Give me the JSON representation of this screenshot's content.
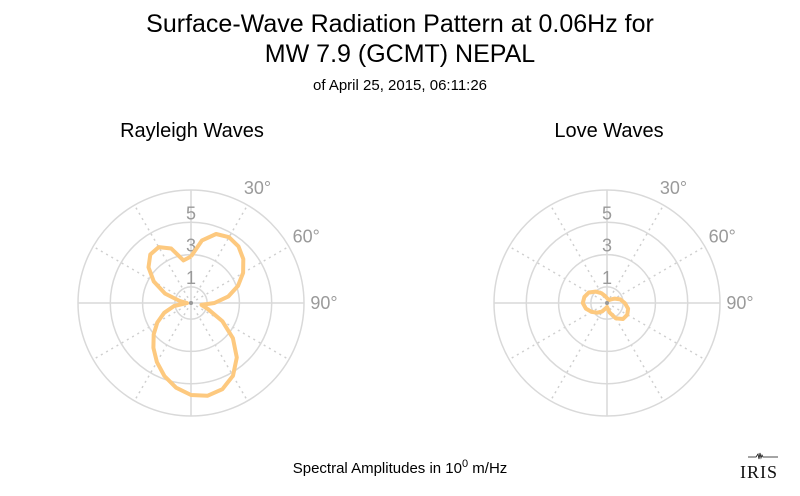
{
  "title": {
    "line1": "Surface-Wave Radiation Pattern at 0.06Hz for",
    "line2": "MW 7.9 (GCMT) NEPAL",
    "line3": "of April 25, 2015, 06:11:26"
  },
  "footer": {
    "prefix": "Spectral Amplitudes in 10",
    "exponent": "0",
    "suffix": " m/Hz"
  },
  "logo_text": "IRIS",
  "colors": {
    "pattern": "#fdc97f",
    "grid_solid": "#d9d9d9",
    "grid_dotted": "#cfcfcf",
    "tick_text": "#9a9a9a"
  },
  "chart_data": [
    {
      "type": "polar-line",
      "title": "Rayleigh Waves",
      "radial_ticks": [
        "1",
        "3",
        "5"
      ],
      "radial_tick_values": [
        1,
        3,
        5
      ],
      "rmax": 7,
      "angle_ticks": [
        "30°",
        "60°",
        "90°"
      ],
      "grid_angles_deg": [
        0,
        30,
        60,
        90,
        120,
        150,
        180,
        210,
        240,
        270,
        300,
        330
      ],
      "points": [
        {
          "azimuth": 0,
          "amplitude": 2.88
        },
        {
          "azimuth": 10,
          "amplitude": 3.94
        },
        {
          "azimuth": 20,
          "amplitude": 4.55
        },
        {
          "azimuth": 30,
          "amplitude": 4.71
        },
        {
          "azimuth": 40,
          "amplitude": 4.58
        },
        {
          "azimuth": 50,
          "amplitude": 4.23
        },
        {
          "azimuth": 60,
          "amplitude": 3.73
        },
        {
          "azimuth": 70,
          "amplitude": 3.1
        },
        {
          "azimuth": 80,
          "amplitude": 2.35
        },
        {
          "azimuth": 90,
          "amplitude": 1.45
        },
        {
          "azimuth": 100,
          "amplitude": 0.66
        },
        {
          "azimuth": 110,
          "amplitude": 1.13
        },
        {
          "azimuth": 120,
          "amplitude": 2.24
        },
        {
          "azimuth": 130,
          "amplitude": 3.39
        },
        {
          "azimuth": 140,
          "amplitude": 4.41
        },
        {
          "azimuth": 150,
          "amplitude": 5.2
        },
        {
          "azimuth": 160,
          "amplitude": 5.68
        },
        {
          "azimuth": 170,
          "amplitude": 5.84
        },
        {
          "azimuth": 180,
          "amplitude": 5.7
        },
        {
          "azimuth": 190,
          "amplitude": 5.33
        },
        {
          "azimuth": 200,
          "amplitude": 4.81
        },
        {
          "azimuth": 210,
          "amplitude": 4.23
        },
        {
          "azimuth": 220,
          "amplitude": 3.62
        },
        {
          "azimuth": 230,
          "amplitude": 3.02
        },
        {
          "azimuth": 240,
          "amplitude": 2.41
        },
        {
          "azimuth": 250,
          "amplitude": 1.77
        },
        {
          "azimuth": 260,
          "amplitude": 1.06
        },
        {
          "azimuth": 270,
          "amplitude": 0.25
        },
        {
          "azimuth": 280,
          "amplitude": 0.69
        },
        {
          "azimuth": 290,
          "amplitude": 1.71
        },
        {
          "azimuth": 300,
          "amplitude": 2.66
        },
        {
          "azimuth": 310,
          "amplitude": 3.44
        },
        {
          "azimuth": 320,
          "amplitude": 3.92
        },
        {
          "azimuth": 330,
          "amplitude": 4.0
        },
        {
          "azimuth": 340,
          "amplitude": 3.59
        },
        {
          "azimuth": 350,
          "amplitude": 2.68
        },
        {
          "azimuth": 360,
          "amplitude": 2.88
        }
      ]
    },
    {
      "type": "polar-line",
      "title": "Love Waves",
      "radial_ticks": [
        "1",
        "3",
        "5"
      ],
      "radial_tick_values": [
        1,
        3,
        5
      ],
      "rmax": 7,
      "angle_ticks": [
        "30°",
        "60°",
        "90°"
      ],
      "grid_angles_deg": [
        0,
        30,
        60,
        90,
        120,
        150,
        180,
        210,
        240,
        270,
        300,
        330
      ],
      "points": [
        {
          "azimuth": 0,
          "amplitude": 0.3
        },
        {
          "azimuth": 15,
          "amplitude": 0.25
        },
        {
          "azimuth": 30,
          "amplitude": 0.2
        },
        {
          "azimuth": 45,
          "amplitude": 0.3
        },
        {
          "azimuth": 60,
          "amplitude": 0.55
        },
        {
          "azimuth": 75,
          "amplitude": 0.85
        },
        {
          "azimuth": 90,
          "amplitude": 1.1
        },
        {
          "azimuth": 105,
          "amplitude": 1.35
        },
        {
          "azimuth": 120,
          "amplitude": 1.45
        },
        {
          "azimuth": 135,
          "amplitude": 1.4
        },
        {
          "azimuth": 150,
          "amplitude": 1.1
        },
        {
          "azimuth": 165,
          "amplitude": 0.6
        },
        {
          "azimuth": 180,
          "amplitude": 0.25
        },
        {
          "azimuth": 195,
          "amplitude": 0.35
        },
        {
          "azimuth": 210,
          "amplitude": 0.6
        },
        {
          "azimuth": 225,
          "amplitude": 0.85
        },
        {
          "azimuth": 240,
          "amplitude": 1.1
        },
        {
          "azimuth": 255,
          "amplitude": 1.35
        },
        {
          "azimuth": 270,
          "amplitude": 1.5
        },
        {
          "azimuth": 285,
          "amplitude": 1.45
        },
        {
          "azimuth": 300,
          "amplitude": 1.3
        },
        {
          "azimuth": 315,
          "amplitude": 1.0
        },
        {
          "azimuth": 330,
          "amplitude": 0.7
        },
        {
          "azimuth": 345,
          "amplitude": 0.45
        },
        {
          "azimuth": 360,
          "amplitude": 0.3
        }
      ]
    }
  ]
}
